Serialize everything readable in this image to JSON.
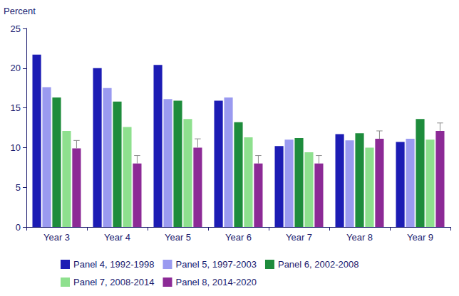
{
  "chart_data": {
    "type": "bar",
    "y_label": "Percent",
    "categories": [
      "Year 3",
      "Year 4",
      "Year 5",
      "Year 6",
      "Year 7",
      "Year 8",
      "Year 9"
    ],
    "series": [
      {
        "name": "Panel 4, 1992-1998",
        "color": "#1c1cb4",
        "values": [
          21.7,
          20.0,
          20.4,
          15.9,
          10.2,
          11.7,
          10.7
        ]
      },
      {
        "name": "Panel 5, 1997-2003",
        "color": "#9a9af0",
        "values": [
          17.6,
          17.5,
          16.1,
          16.3,
          11.0,
          10.9,
          11.1
        ]
      },
      {
        "name": "Panel 6, 2002-2008",
        "color": "#1e8c3c",
        "values": [
          16.3,
          15.8,
          15.9,
          13.2,
          11.2,
          11.8,
          13.6
        ]
      },
      {
        "name": "Panel 7, 2008-2014",
        "color": "#8ee08e",
        "values": [
          12.1,
          12.6,
          13.6,
          11.3,
          9.4,
          10.0,
          11.0
        ]
      },
      {
        "name": "Panel 8, 2014-2020",
        "color": "#8c2a96",
        "values": [
          9.9,
          8.0,
          10.0,
          8.0,
          8.0,
          11.1,
          12.1
        ],
        "errors": [
          1.0,
          1.0,
          1.1,
          1.0,
          1.0,
          1.0,
          1.0
        ]
      }
    ],
    "ylim": [
      0,
      25
    ],
    "yticks": [
      0,
      5,
      10,
      15,
      20,
      25
    ],
    "grid": false,
    "legend": "bottom"
  }
}
